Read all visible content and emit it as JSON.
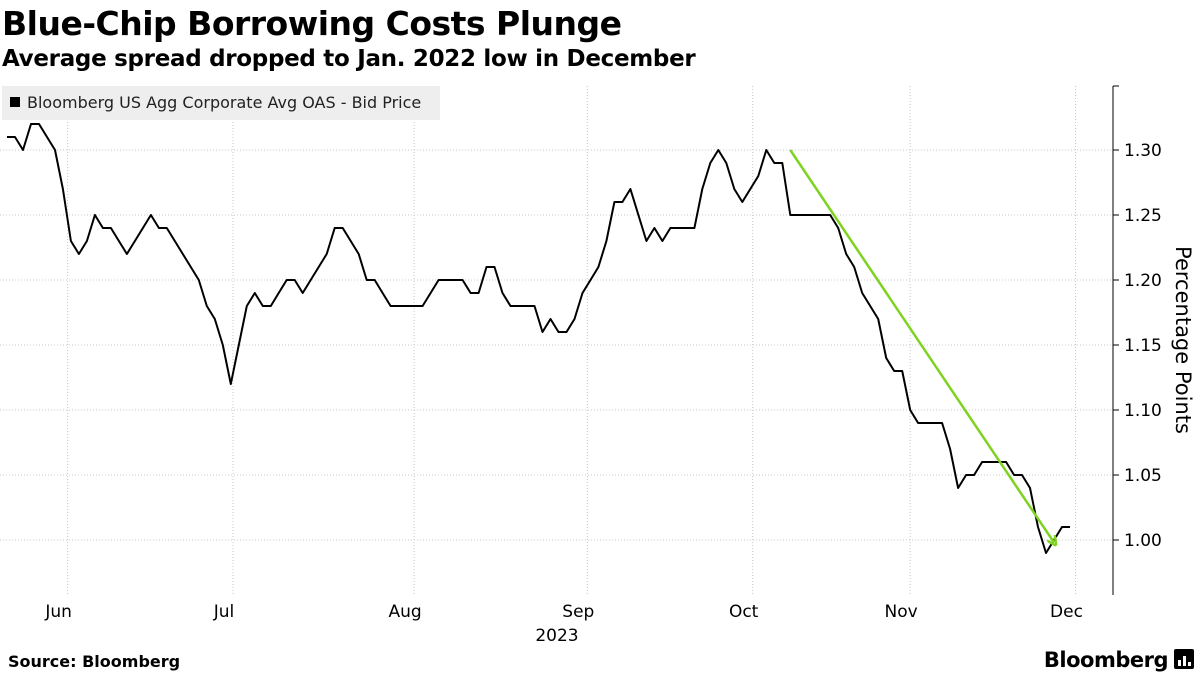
{
  "header": {
    "title": "Blue-Chip Borrowing Costs Plunge",
    "subtitle": "Average spread dropped to Jan. 2022 low in December"
  },
  "footer": {
    "source": "Source: Bloomberg",
    "brand": "Bloomberg"
  },
  "colors": {
    "line": "#000000",
    "arrow": "#7ed321",
    "grid": "#c8c8c8",
    "legend_bg": "#eeeeee"
  },
  "chart_data": {
    "type": "line",
    "title": "Blue-Chip Borrowing Costs Plunge",
    "subtitle": "Average spread dropped to Jan. 2022 low in December",
    "xlabel": "2023",
    "ylabel": "Percentage Points",
    "ylim": [
      0.96,
      1.35
    ],
    "grid": true,
    "legend_position": "top-left",
    "y_ticks": [
      "1.00",
      "1.05",
      "1.10",
      "1.15",
      "1.20",
      "1.25",
      "1.30"
    ],
    "y_tick_values": [
      1.0,
      1.05,
      1.1,
      1.15,
      1.2,
      1.25,
      1.3
    ],
    "x_ticks": [
      "Jun",
      "Jul",
      "Aug",
      "Sep",
      "Oct",
      "Nov",
      "Dec"
    ],
    "x_tick_values": [
      3,
      24,
      47,
      69,
      90,
      110,
      131
    ],
    "x_range": [
      0,
      136
    ],
    "series": [
      {
        "name": "Bloomberg US Agg Corporate Avg OAS - Bid Price",
        "values": [
          1.31,
          1.31,
          1.3,
          1.32,
          1.32,
          1.31,
          1.3,
          1.27,
          1.23,
          1.22,
          1.23,
          1.25,
          1.24,
          1.24,
          1.23,
          1.22,
          1.23,
          1.24,
          1.25,
          1.24,
          1.24,
          1.23,
          1.22,
          1.21,
          1.2,
          1.18,
          1.17,
          1.15,
          1.12,
          1.15,
          1.18,
          1.19,
          1.18,
          1.18,
          1.19,
          1.2,
          1.2,
          1.19,
          1.2,
          1.21,
          1.22,
          1.24,
          1.24,
          1.23,
          1.22,
          1.2,
          1.2,
          1.19,
          1.18,
          1.18,
          1.18,
          1.18,
          1.18,
          1.19,
          1.2,
          1.2,
          1.2,
          1.2,
          1.19,
          1.19,
          1.21,
          1.21,
          1.19,
          1.18,
          1.18,
          1.18,
          1.18,
          1.16,
          1.17,
          1.16,
          1.16,
          1.17,
          1.19,
          1.2,
          1.21,
          1.23,
          1.26,
          1.26,
          1.27,
          1.25,
          1.23,
          1.24,
          1.23,
          1.24,
          1.24,
          1.24,
          1.24,
          1.27,
          1.29,
          1.3,
          1.29,
          1.27,
          1.26,
          1.27,
          1.28,
          1.3,
          1.29,
          1.29,
          1.25,
          1.25,
          1.25,
          1.25,
          1.25,
          1.25,
          1.24,
          1.22,
          1.21,
          1.19,
          1.18,
          1.17,
          1.14,
          1.13,
          1.13,
          1.1,
          1.09,
          1.09,
          1.09,
          1.09,
          1.07,
          1.04,
          1.05,
          1.05,
          1.06,
          1.06,
          1.06,
          1.06,
          1.05,
          1.05,
          1.04,
          1.01,
          0.99,
          1.0,
          1.01,
          1.01
        ]
      }
    ],
    "annotations": [
      {
        "type": "arrow",
        "from": [
          98,
          1.3
        ],
        "to": [
          131,
          0.995
        ]
      }
    ]
  }
}
